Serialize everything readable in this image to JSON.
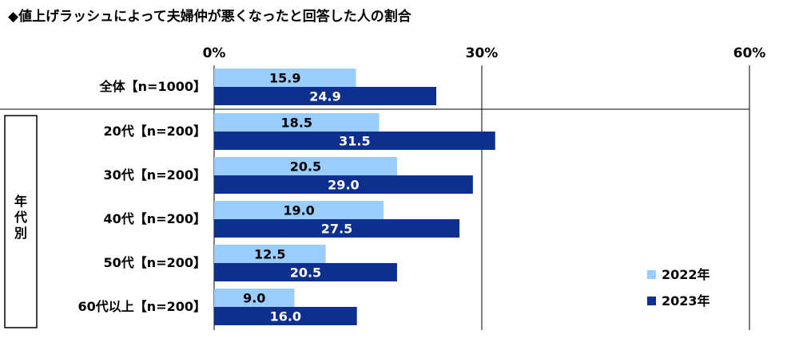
{
  "title": "◆値上げラッシュによって夫婦仲が悪くなったと回答した人の割合",
  "group_label": [
    "年",
    "代",
    "別"
  ],
  "colors": {
    "series_2022": "#99CCFF",
    "series_2023": "#0D2F8E"
  },
  "chart_data": {
    "type": "bar",
    "orientation": "horizontal",
    "title": "◆値上げラッシュによって夫婦仲が悪くなったと回答した人の割合",
    "categories": [
      "全体【n=1000】",
      "20代【n=200】",
      "30代【n=200】",
      "40代【n=200】",
      "50代【n=200】",
      "60代以上【n=200】"
    ],
    "series": [
      {
        "name": "2022年",
        "values": [
          15.9,
          18.5,
          20.5,
          19.0,
          12.5,
          9.0
        ]
      },
      {
        "name": "2023年",
        "values": [
          24.9,
          31.5,
          29.0,
          27.5,
          20.5,
          16.0
        ]
      }
    ],
    "xlim": [
      0,
      60
    ],
    "ticks": [
      "0%",
      "30%",
      "60%"
    ],
    "tick_values": [
      0,
      30,
      60
    ],
    "legend_position": "bottom-right",
    "grid": true
  }
}
